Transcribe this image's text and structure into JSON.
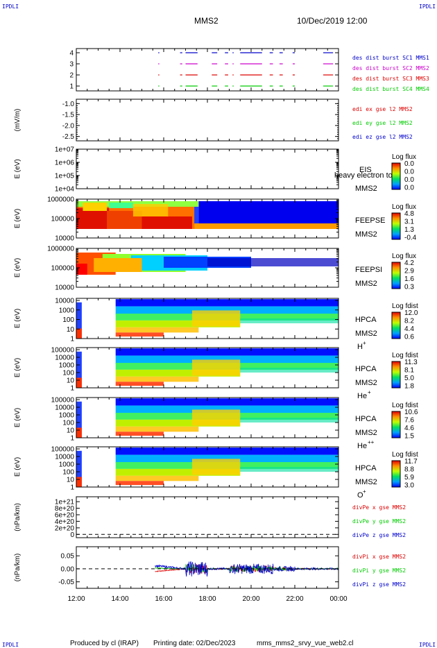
{
  "header": {
    "corner_tl": "IPDLI",
    "corner_tr": "IPDLI",
    "corner_bl": "IPDLI",
    "corner_br": "IPDLI",
    "title": "MMS2",
    "date": "10/Dec/2019 12:00"
  },
  "footer": {
    "produced_by": "Produced by cl (IRAP)",
    "printing_date": "Printing date: 02/Dec/2023",
    "script_name": "mms_mms2_srvy_vue_web2.cl"
  },
  "colors": {
    "blue": "#0000cc",
    "red": "#dd0000",
    "green": "#00cc00",
    "magenta": "#cc00cc"
  },
  "chart_data": [
    {
      "type": "line",
      "panel": "burst",
      "yticks": [
        "4",
        "3",
        "2",
        "1"
      ],
      "series": [
        {
          "name": "des dist burst SC1 MMS1",
          "level": 4,
          "color": "#0000cc",
          "segments": [
            [
              15.75,
              15.8
            ],
            [
              16.75,
              16.85
            ],
            [
              17.0,
              17.55
            ],
            [
              18.2,
              18.45
            ],
            [
              18.8,
              18.95
            ],
            [
              19.15,
              19.2
            ],
            [
              19.5,
              20.5
            ],
            [
              20.85,
              21.0
            ],
            [
              21.3,
              21.45
            ],
            [
              21.9,
              22.0
            ],
            [
              23.3,
              23.75
            ]
          ]
        },
        {
          "name": "des dist burst SC2 MMS2",
          "level": 3,
          "color": "#cc00cc",
          "segments": [
            [
              15.75,
              15.8
            ],
            [
              16.75,
              16.85
            ],
            [
              17.0,
              17.55
            ],
            [
              18.2,
              18.45
            ],
            [
              18.8,
              18.95
            ],
            [
              19.15,
              19.2
            ],
            [
              19.5,
              20.5
            ],
            [
              20.85,
              21.0
            ],
            [
              21.3,
              21.45
            ],
            [
              21.9,
              22.0
            ],
            [
              23.3,
              23.75
            ]
          ]
        },
        {
          "name": "des dist burst SC3 MMS3",
          "level": 2,
          "color": "#dd0000",
          "segments": [
            [
              15.75,
              15.8
            ],
            [
              16.75,
              16.85
            ],
            [
              17.0,
              17.55
            ],
            [
              18.2,
              18.45
            ],
            [
              18.8,
              18.95
            ],
            [
              19.15,
              19.2
            ],
            [
              19.5,
              20.5
            ],
            [
              20.85,
              21.0
            ],
            [
              21.3,
              21.45
            ],
            [
              21.9,
              22.0
            ],
            [
              23.3,
              23.75
            ]
          ]
        },
        {
          "name": "des dist burst SC4 MMS4",
          "level": 1,
          "color": "#00cc00",
          "segments": [
            [
              15.75,
              15.8
            ],
            [
              16.75,
              16.85
            ],
            [
              17.0,
              17.55
            ],
            [
              18.2,
              18.45
            ],
            [
              18.8,
              18.95
            ],
            [
              19.15,
              19.2
            ],
            [
              19.5,
              20.5
            ],
            [
              20.85,
              21.0
            ],
            [
              21.3,
              21.45
            ],
            [
              21.9,
              22.0
            ],
            [
              23.3,
              23.75
            ]
          ]
        }
      ]
    },
    {
      "type": "line",
      "panel": "edi",
      "ylabel": "(mV/m)",
      "ylim": [
        -2.7,
        -0.8
      ],
      "yticks": [
        -1.0,
        -1.5,
        -2.0,
        -2.5
      ],
      "ytick_labels": [
        "-1.0",
        "-1.5",
        "-2.0",
        "-2.5"
      ],
      "series": [
        {
          "name": "edi ex gse l2 MMS2",
          "color": "#dd0000"
        },
        {
          "name": "edi ey gse l2 MMS2",
          "color": "#00cc00"
        },
        {
          "name": "edi ez gse l2 MMS2",
          "color": "#0000cc"
        }
      ]
    },
    {
      "type": "heatmap",
      "panel": "eis",
      "ylabel": "E (eV)",
      "ytick_labels": [
        "1e+07",
        "1e+06",
        "1e+05",
        "1e+04"
      ],
      "instrument": "EIS",
      "spacecraft": "MMS2",
      "overlay_text": "heavy electron to",
      "colorbar_title": "Log flux",
      "colorbar_labels": [
        "0.0",
        "0.0",
        "0.0",
        "0.0"
      ]
    },
    {
      "type": "heatmap",
      "panel": "feepse",
      "ylabel": "E (eV)",
      "ytick_labels": [
        "1000000",
        "100000",
        "10000"
      ],
      "instrument": "FEEPSE",
      "spacecraft": "MMS2",
      "colorbar_title": "Log flux",
      "colorbar_labels": [
        "4.8",
        "3.1",
        "1.3",
        "-0.4"
      ]
    },
    {
      "type": "heatmap",
      "panel": "feepsi",
      "ylabel": "E (eV)",
      "ytick_labels": [
        "1000000",
        "100000",
        "10000"
      ],
      "instrument": "FEEPSI",
      "spacecraft": "MMS2",
      "colorbar_title": "Log flux",
      "colorbar_labels": [
        "4.2",
        "2.9",
        "1.6",
        "0.3"
      ]
    },
    {
      "type": "heatmap",
      "panel": "hpca_h",
      "ylabel": "E (eV)",
      "ytick_labels": [
        "10000",
        "1000",
        "100",
        "10",
        "1"
      ],
      "instrument": "HPCA",
      "spacecraft": "MMS2",
      "species": "H",
      "species_sup": "+",
      "colorbar_title": "Log fdist",
      "colorbar_labels": [
        "12.0",
        "8.2",
        "4.4",
        "0.6"
      ]
    },
    {
      "type": "heatmap",
      "panel": "hpca_he",
      "ylabel": "E (eV)",
      "ytick_labels": [
        "100000",
        "10000",
        "1000",
        "100",
        "10",
        "1"
      ],
      "instrument": "HPCA",
      "spacecraft": "MMS2",
      "species": "He",
      "species_sup": "+",
      "colorbar_title": "Log fdist",
      "colorbar_labels": [
        "11.3",
        "8.1",
        "5.0",
        "1.8"
      ]
    },
    {
      "type": "heatmap",
      "panel": "hpca_hepp",
      "ylabel": "E (eV)",
      "ytick_labels": [
        "100000",
        "10000",
        "1000",
        "100",
        "10",
        "1"
      ],
      "instrument": "HPCA",
      "spacecraft": "MMS2",
      "species": "He",
      "species_sup": "++",
      "colorbar_title": "Log fdist",
      "colorbar_labels": [
        "10.6",
        "7.6",
        "4.6",
        "1.5"
      ]
    },
    {
      "type": "heatmap",
      "panel": "hpca_o",
      "ylabel": "E (eV)",
      "ytick_labels": [
        "100000",
        "10000",
        "1000",
        "100",
        "10",
        "1"
      ],
      "instrument": "HPCA",
      "spacecraft": "MMS2",
      "species": "O",
      "species_sup": "+",
      "colorbar_title": "Log fdist",
      "colorbar_labels": [
        "11.7",
        "8.8",
        "5.9",
        "3.0"
      ]
    },
    {
      "type": "line",
      "panel": "divpe",
      "ylabel": "(nPa/km)",
      "ylim": [
        -1e+20,
        1.15e+21
      ],
      "yticks": [
        1e+21,
        8e+20,
        6e+20,
        4e+20,
        2e+20,
        0
      ],
      "ytick_labels": [
        "1e+21",
        "8e+20",
        "6e+20",
        "4e+20",
        "2e+20",
        "0"
      ],
      "series": [
        {
          "name": "divPe x gse MMS2",
          "color": "#dd0000"
        },
        {
          "name": "divPe y gse MMS2",
          "color": "#00cc00"
        },
        {
          "name": "divPe z gse MMS2",
          "color": "#0000cc"
        }
      ]
    },
    {
      "type": "line",
      "panel": "divpi",
      "ylabel": "(nPa/km)",
      "ylim": [
        -0.075,
        0.085
      ],
      "yticks": [
        0.05,
        0.0,
        -0.05
      ],
      "ytick_labels": [
        "0.05",
        "0.00",
        "-0.05"
      ],
      "series": [
        {
          "name": "divPi x gse MMS2",
          "color": "#dd0000"
        },
        {
          "name": "divPi y gse MMS2",
          "color": "#00cc00"
        },
        {
          "name": "divPi z gse MMS2",
          "color": "#0000cc"
        }
      ]
    }
  ],
  "time_axis": {
    "xlim": [
      12,
      24
    ],
    "ticks": [
      12,
      14,
      16,
      18,
      20,
      22,
      24
    ],
    "tick_labels": [
      "12:00",
      "14:00",
      "16:00",
      "18:00",
      "20:00",
      "22:00",
      "00:00"
    ]
  }
}
